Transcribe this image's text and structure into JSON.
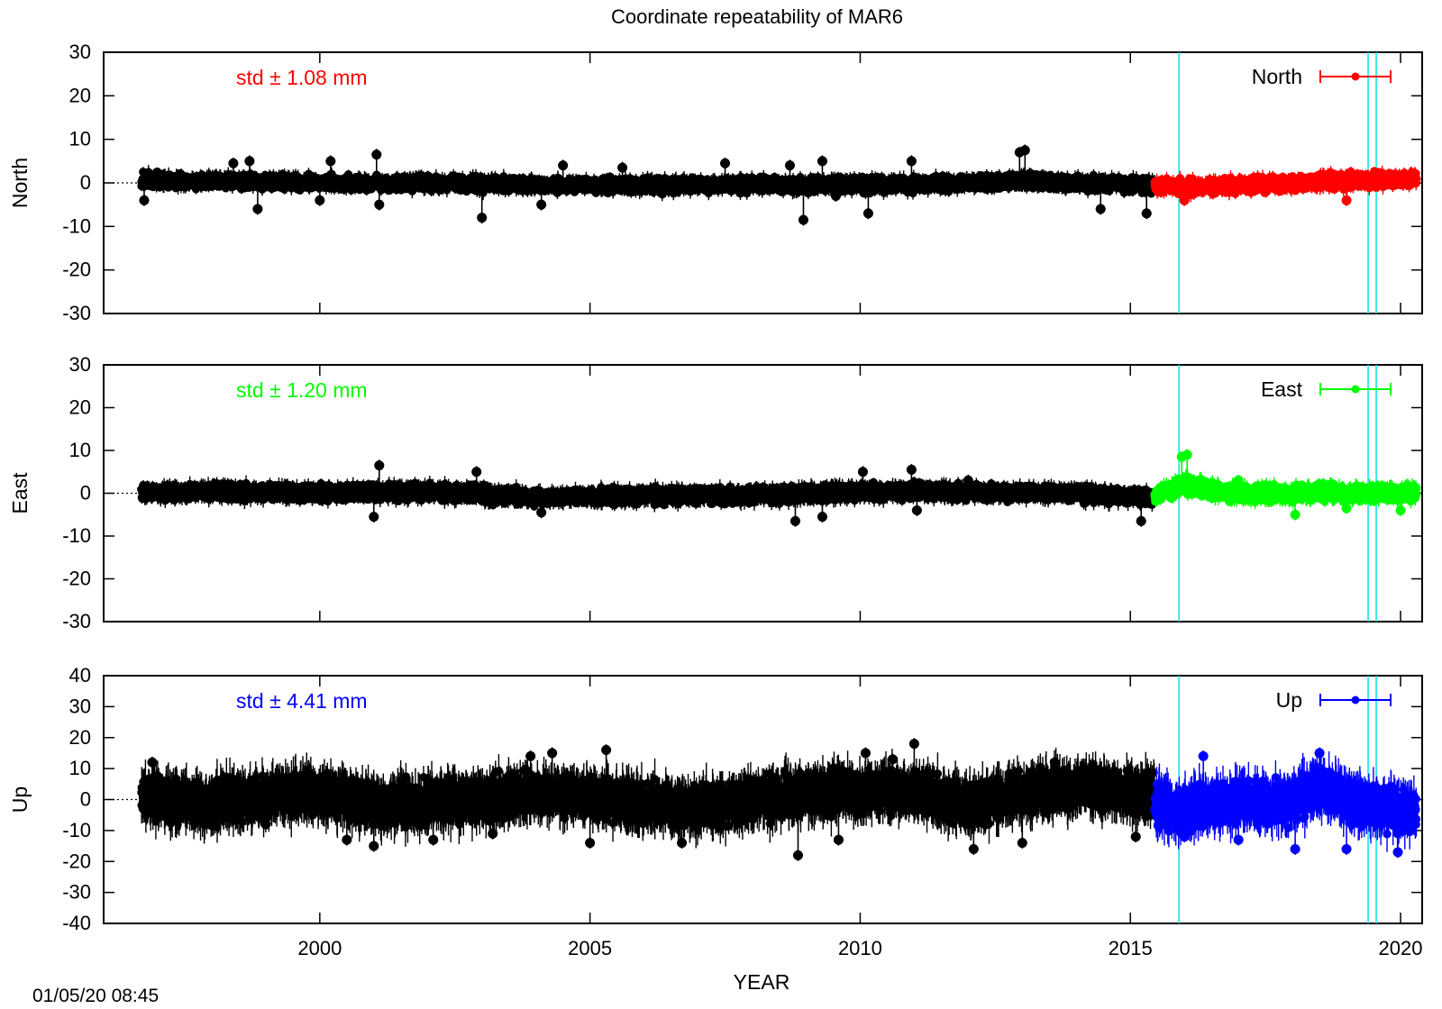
{
  "title": "Coordinate repeatability of MAR6",
  "xlabel": "YEAR",
  "timestamp": "01/05/20 08:45",
  "chart_data": [
    {
      "type": "scatter",
      "panel": "north",
      "ylabel": "North",
      "ylim": [
        -30,
        30
      ],
      "yticks": [
        -30,
        -20,
        -10,
        0,
        10,
        20,
        30
      ],
      "xlim": [
        1996.0,
        2020.4
      ],
      "xticks": [
        2000,
        2005,
        2010,
        2015,
        2020
      ],
      "std_label": "std ± 1.08 mm",
      "std_color": "#ff0000",
      "legend": "North",
      "legend_position": "top-right",
      "colors": {
        "history": "#000000",
        "recent": "#ff0000",
        "events": "#00e5ee"
      },
      "event_lines": [
        2015.9,
        2019.4,
        2019.55
      ],
      "data_start": 1996.7,
      "recent_start": 2015.45,
      "x_end": 2020.3,
      "noise": 1.08,
      "series": [
        {
          "name": "history",
          "color": "#000000",
          "x": [
            1996.7,
            1998.0,
            2000.0,
            2002.0,
            2004.0,
            2006.0,
            2008.0,
            2010.0,
            2012.0,
            2013.0,
            2014.0,
            2015.45
          ],
          "y": [
            0.5,
            0.5,
            0.0,
            0.0,
            -0.5,
            -0.5,
            -0.5,
            -0.5,
            0.0,
            0.5,
            0.0,
            -0.5
          ]
        },
        {
          "name": "recent",
          "color": "#ff0000",
          "x": [
            2015.45,
            2016.0,
            2017.0,
            2018.0,
            2019.0,
            2020.3
          ],
          "y": [
            -0.5,
            -1.0,
            -0.5,
            0.0,
            0.5,
            1.0
          ]
        }
      ],
      "outliers": [
        [
          1996.75,
          -4
        ],
        [
          1998.4,
          4.5
        ],
        [
          1998.7,
          5
        ],
        [
          1998.85,
          -6
        ],
        [
          2000.0,
          -4
        ],
        [
          2000.2,
          5
        ],
        [
          2001.05,
          6.5
        ],
        [
          2001.1,
          -5
        ],
        [
          2003.0,
          -8
        ],
        [
          2004.1,
          -5
        ],
        [
          2004.5,
          4
        ],
        [
          2005.6,
          3.5
        ],
        [
          2007.5,
          4.5
        ],
        [
          2008.7,
          4
        ],
        [
          2008.95,
          -8.5
        ],
        [
          2009.3,
          5
        ],
        [
          2009.55,
          -3
        ],
        [
          2010.15,
          -7
        ],
        [
          2010.95,
          5
        ],
        [
          2012.95,
          7
        ],
        [
          2013.05,
          7.5
        ],
        [
          2014.45,
          -6
        ],
        [
          2015.3,
          -7
        ],
        [
          2016.0,
          -4
        ],
        [
          2019.0,
          -4
        ]
      ]
    },
    {
      "type": "scatter",
      "panel": "east",
      "ylabel": "East",
      "ylim": [
        -30,
        30
      ],
      "yticks": [
        -30,
        -20,
        -10,
        0,
        10,
        20,
        30
      ],
      "xlim": [
        1996.0,
        2020.4
      ],
      "xticks": [
        2000,
        2005,
        2010,
        2015,
        2020
      ],
      "std_label": "std ± 1.20 mm",
      "std_color": "#00ff00",
      "legend": "East",
      "legend_position": "top-right",
      "colors": {
        "history": "#000000",
        "recent": "#00ff00",
        "events": "#00e5ee"
      },
      "event_lines": [
        2015.9,
        2019.4,
        2019.55
      ],
      "data_start": 1996.7,
      "recent_start": 2015.45,
      "x_end": 2020.3,
      "noise": 1.2,
      "series": [
        {
          "name": "history",
          "color": "#000000",
          "x": [
            1996.7,
            1998.0,
            2000.0,
            2002.0,
            2004.0,
            2006.0,
            2008.0,
            2010.0,
            2011.0,
            2013.0,
            2014.0,
            2015.45
          ],
          "y": [
            0.0,
            0.5,
            0.0,
            0.5,
            -1.0,
            -0.5,
            -0.5,
            0.5,
            0.5,
            0.0,
            0.0,
            -1.0
          ]
        },
        {
          "name": "recent",
          "color": "#00ff00",
          "x": [
            2015.45,
            2016.0,
            2016.5,
            2017.0,
            2018.0,
            2019.0,
            2020.3
          ],
          "y": [
            -0.5,
            2.0,
            0.5,
            0.0,
            0.0,
            0.0,
            0.0
          ]
        }
      ],
      "outliers": [
        [
          2001.0,
          -5.5
        ],
        [
          2001.1,
          6.5
        ],
        [
          2002.9,
          5
        ],
        [
          2004.1,
          -4.5
        ],
        [
          2008.8,
          -6.5
        ],
        [
          2009.3,
          -5.5
        ],
        [
          2010.05,
          5
        ],
        [
          2010.95,
          5.5
        ],
        [
          2011.05,
          -4
        ],
        [
          2012.0,
          3
        ],
        [
          2015.2,
          -6.5
        ],
        [
          2015.95,
          8.5
        ],
        [
          2016.05,
          9
        ],
        [
          2017.0,
          3
        ],
        [
          2018.05,
          -5
        ],
        [
          2019.0,
          -3.5
        ],
        [
          2020.0,
          -4
        ]
      ]
    },
    {
      "type": "scatter",
      "panel": "up",
      "ylabel": "Up",
      "ylim": [
        -40,
        40
      ],
      "yticks": [
        -40,
        -30,
        -20,
        -10,
        0,
        10,
        20,
        30,
        40
      ],
      "xlim": [
        1996.0,
        2020.4
      ],
      "xticks": [
        2000,
        2005,
        2010,
        2015,
        2020
      ],
      "std_label": "std ± 4.41 mm",
      "std_color": "#0000ff",
      "legend": "Up",
      "legend_position": "top-right",
      "colors": {
        "history": "#000000",
        "recent": "#0000ff",
        "events": "#00e5ee"
      },
      "event_lines": [
        2015.9,
        2019.4,
        2019.55
      ],
      "data_start": 1996.7,
      "recent_start": 2015.45,
      "x_end": 2020.3,
      "noise": 4.41,
      "series": [
        {
          "name": "history",
          "color": "#000000",
          "x": [
            1996.7,
            1998.0,
            2000.0,
            2001.0,
            2002.0,
            2004.0,
            2005.0,
            2007.0,
            2008.0,
            2010.0,
            2011.0,
            2012.0,
            2013.0,
            2014.0,
            2015.45
          ],
          "y": [
            0.5,
            -1.0,
            2.0,
            -2.0,
            -1.0,
            2.0,
            1.0,
            -3.0,
            0.0,
            3.0,
            3.0,
            -2.0,
            2.0,
            4.0,
            2.0
          ]
        },
        {
          "name": "recent",
          "color": "#0000ff",
          "x": [
            2015.45,
            2016.0,
            2016.5,
            2017.0,
            2017.5,
            2018.0,
            2018.5,
            2019.0,
            2019.5,
            2020.3
          ],
          "y": [
            -2.0,
            -3.0,
            -2.0,
            0.0,
            -2.0,
            -1.0,
            4.0,
            0.0,
            -3.0,
            -3.0
          ]
        }
      ],
      "outliers": [
        [
          1996.9,
          12
        ],
        [
          1999.0,
          -8
        ],
        [
          2000.5,
          -13
        ],
        [
          2001.0,
          -15
        ],
        [
          2002.1,
          -13
        ],
        [
          2003.2,
          -11
        ],
        [
          2003.9,
          14
        ],
        [
          2004.3,
          15
        ],
        [
          2005.0,
          -14
        ],
        [
          2005.3,
          16
        ],
        [
          2006.7,
          -14
        ],
        [
          2008.85,
          -18
        ],
        [
          2009.6,
          -13
        ],
        [
          2010.1,
          15
        ],
        [
          2010.6,
          13
        ],
        [
          2011.0,
          18
        ],
        [
          2012.1,
          -16
        ],
        [
          2013.0,
          -14
        ],
        [
          2013.6,
          12
        ],
        [
          2015.1,
          -12
        ],
        [
          2016.0,
          -12
        ],
        [
          2016.35,
          14
        ],
        [
          2017.0,
          -13
        ],
        [
          2018.05,
          -16
        ],
        [
          2018.5,
          15
        ],
        [
          2019.0,
          -16
        ],
        [
          2019.95,
          -17
        ]
      ]
    }
  ]
}
